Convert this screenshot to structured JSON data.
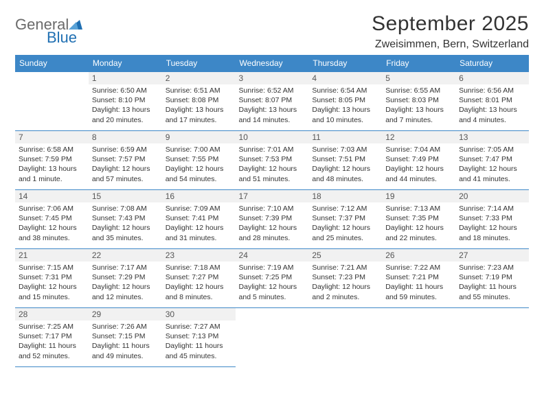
{
  "logo": {
    "word1": "General",
    "word2": "Blue",
    "shape_color": "#1f6fb2",
    "text_color_gray": "#6a6a6a"
  },
  "title": "September 2025",
  "location": "Zweisimmen, Bern, Switzerland",
  "style": {
    "header_bg": "#3d87c7",
    "header_fg": "#ffffff",
    "cell_border": "#3d87c7",
    "shade_bg": "#f1f1f1",
    "body_fontsize": 10.5,
    "daynum_color": "#555555"
  },
  "calendar": {
    "type": "table",
    "columns": [
      "Sunday",
      "Monday",
      "Tuesday",
      "Wednesday",
      "Thursday",
      "Friday",
      "Saturday"
    ],
    "start_weekday": 1,
    "days": [
      {
        "n": 1,
        "sunrise": "6:50 AM",
        "sunset": "8:10 PM",
        "daylight": "13 hours and 20 minutes."
      },
      {
        "n": 2,
        "sunrise": "6:51 AM",
        "sunset": "8:08 PM",
        "daylight": "13 hours and 17 minutes."
      },
      {
        "n": 3,
        "sunrise": "6:52 AM",
        "sunset": "8:07 PM",
        "daylight": "13 hours and 14 minutes."
      },
      {
        "n": 4,
        "sunrise": "6:54 AM",
        "sunset": "8:05 PM",
        "daylight": "13 hours and 10 minutes."
      },
      {
        "n": 5,
        "sunrise": "6:55 AM",
        "sunset": "8:03 PM",
        "daylight": "13 hours and 7 minutes."
      },
      {
        "n": 6,
        "sunrise": "6:56 AM",
        "sunset": "8:01 PM",
        "daylight": "13 hours and 4 minutes."
      },
      {
        "n": 7,
        "sunrise": "6:58 AM",
        "sunset": "7:59 PM",
        "daylight": "13 hours and 1 minute."
      },
      {
        "n": 8,
        "sunrise": "6:59 AM",
        "sunset": "7:57 PM",
        "daylight": "12 hours and 57 minutes."
      },
      {
        "n": 9,
        "sunrise": "7:00 AM",
        "sunset": "7:55 PM",
        "daylight": "12 hours and 54 minutes."
      },
      {
        "n": 10,
        "sunrise": "7:01 AM",
        "sunset": "7:53 PM",
        "daylight": "12 hours and 51 minutes."
      },
      {
        "n": 11,
        "sunrise": "7:03 AM",
        "sunset": "7:51 PM",
        "daylight": "12 hours and 48 minutes."
      },
      {
        "n": 12,
        "sunrise": "7:04 AM",
        "sunset": "7:49 PM",
        "daylight": "12 hours and 44 minutes."
      },
      {
        "n": 13,
        "sunrise": "7:05 AM",
        "sunset": "7:47 PM",
        "daylight": "12 hours and 41 minutes."
      },
      {
        "n": 14,
        "sunrise": "7:06 AM",
        "sunset": "7:45 PM",
        "daylight": "12 hours and 38 minutes."
      },
      {
        "n": 15,
        "sunrise": "7:08 AM",
        "sunset": "7:43 PM",
        "daylight": "12 hours and 35 minutes."
      },
      {
        "n": 16,
        "sunrise": "7:09 AM",
        "sunset": "7:41 PM",
        "daylight": "12 hours and 31 minutes."
      },
      {
        "n": 17,
        "sunrise": "7:10 AM",
        "sunset": "7:39 PM",
        "daylight": "12 hours and 28 minutes."
      },
      {
        "n": 18,
        "sunrise": "7:12 AM",
        "sunset": "7:37 PM",
        "daylight": "12 hours and 25 minutes."
      },
      {
        "n": 19,
        "sunrise": "7:13 AM",
        "sunset": "7:35 PM",
        "daylight": "12 hours and 22 minutes."
      },
      {
        "n": 20,
        "sunrise": "7:14 AM",
        "sunset": "7:33 PM",
        "daylight": "12 hours and 18 minutes."
      },
      {
        "n": 21,
        "sunrise": "7:15 AM",
        "sunset": "7:31 PM",
        "daylight": "12 hours and 15 minutes."
      },
      {
        "n": 22,
        "sunrise": "7:17 AM",
        "sunset": "7:29 PM",
        "daylight": "12 hours and 12 minutes."
      },
      {
        "n": 23,
        "sunrise": "7:18 AM",
        "sunset": "7:27 PM",
        "daylight": "12 hours and 8 minutes."
      },
      {
        "n": 24,
        "sunrise": "7:19 AM",
        "sunset": "7:25 PM",
        "daylight": "12 hours and 5 minutes."
      },
      {
        "n": 25,
        "sunrise": "7:21 AM",
        "sunset": "7:23 PM",
        "daylight": "12 hours and 2 minutes."
      },
      {
        "n": 26,
        "sunrise": "7:22 AM",
        "sunset": "7:21 PM",
        "daylight": "11 hours and 59 minutes."
      },
      {
        "n": 27,
        "sunrise": "7:23 AM",
        "sunset": "7:19 PM",
        "daylight": "11 hours and 55 minutes."
      },
      {
        "n": 28,
        "sunrise": "7:25 AM",
        "sunset": "7:17 PM",
        "daylight": "11 hours and 52 minutes."
      },
      {
        "n": 29,
        "sunrise": "7:26 AM",
        "sunset": "7:15 PM",
        "daylight": "11 hours and 49 minutes."
      },
      {
        "n": 30,
        "sunrise": "7:27 AM",
        "sunset": "7:13 PM",
        "daylight": "11 hours and 45 minutes."
      }
    ],
    "labels": {
      "sunrise": "Sunrise:",
      "sunset": "Sunset:",
      "daylight": "Daylight:"
    }
  }
}
